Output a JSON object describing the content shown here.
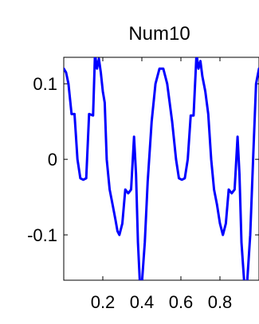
{
  "chart_data": {
    "type": "line",
    "title": "Num10",
    "xlabel": "",
    "ylabel": "",
    "xlim": [
      0,
      1
    ],
    "ylim": [
      -0.16,
      0.135
    ],
    "x_ticks": [
      {
        "value": 0.2,
        "label": "0.2"
      },
      {
        "value": 0.4,
        "label": "0.4"
      },
      {
        "value": 0.6,
        "label": "0.6"
      },
      {
        "value": 0.8,
        "label": "0.8"
      }
    ],
    "y_ticks": [
      {
        "value": 0.1,
        "label": "0.1"
      },
      {
        "value": 0.0,
        "label": "0"
      },
      {
        "value": -0.1,
        "label": "-0.1"
      }
    ],
    "grid": false,
    "series": [
      {
        "color": "#0000ff",
        "x": [
          0.0,
          0.012,
          0.024,
          0.04,
          0.055,
          0.07,
          0.085,
          0.1,
          0.115,
          0.13,
          0.15,
          0.16,
          0.17,
          0.18,
          0.19,
          0.2,
          0.21,
          0.22,
          0.235,
          0.25,
          0.265,
          0.275,
          0.285,
          0.3,
          0.315,
          0.33,
          0.345,
          0.36,
          0.37,
          0.38,
          0.39,
          0.4,
          0.415,
          0.43,
          0.45,
          0.47,
          0.49,
          0.51,
          0.53,
          0.555,
          0.575,
          0.59,
          0.605,
          0.62,
          0.635,
          0.65,
          0.665,
          0.68,
          0.69,
          0.7,
          0.71,
          0.725,
          0.74,
          0.755,
          0.77,
          0.785,
          0.8,
          0.815,
          0.83,
          0.845,
          0.86,
          0.875,
          0.89,
          0.9,
          0.91,
          0.925,
          0.94,
          0.955,
          0.97,
          0.985,
          1.0
        ],
        "y": [
          0.12,
          0.115,
          0.1,
          0.06,
          0.06,
          0.0,
          -0.025,
          -0.027,
          -0.025,
          0.06,
          0.058,
          0.14,
          0.12,
          0.133,
          0.115,
          0.09,
          0.075,
          0.0,
          -0.04,
          -0.06,
          -0.08,
          -0.095,
          -0.1,
          -0.085,
          -0.04,
          -0.045,
          -0.04,
          0.03,
          -0.02,
          -0.11,
          -0.165,
          -0.165,
          -0.11,
          -0.03,
          0.05,
          0.1,
          0.12,
          0.12,
          0.1,
          0.05,
          0.0,
          -0.025,
          -0.027,
          -0.025,
          0.0,
          0.058,
          0.058,
          0.14,
          0.12,
          0.13,
          0.11,
          0.09,
          0.06,
          0.0,
          -0.04,
          -0.06,
          -0.085,
          -0.1,
          -0.085,
          -0.04,
          -0.045,
          -0.04,
          0.03,
          -0.02,
          -0.11,
          -0.165,
          -0.16,
          -0.1,
          0.0,
          0.1,
          0.12
        ]
      }
    ]
  }
}
